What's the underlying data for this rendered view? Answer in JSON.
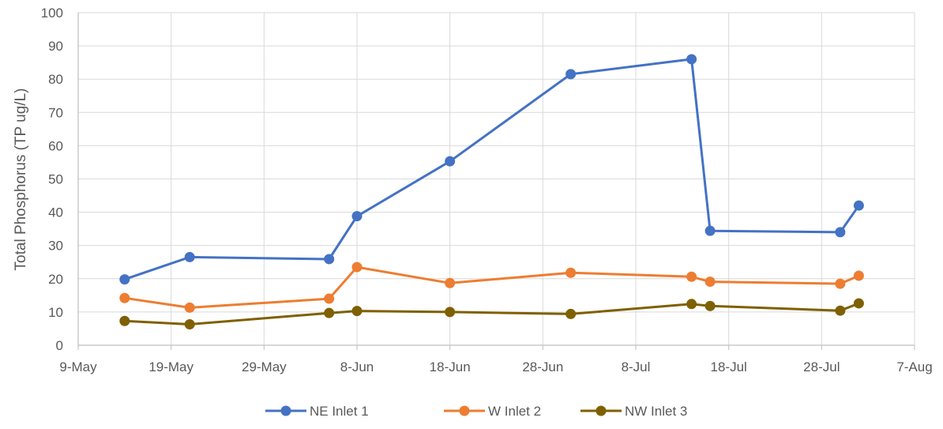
{
  "chart_data": {
    "type": "line",
    "title": "",
    "xlabel": "",
    "ylabel": "Total Phosphorus (TP ug/L)",
    "ylim": [
      0,
      100
    ],
    "yticks": [
      "0",
      "10",
      "20",
      "30",
      "40",
      "50",
      "60",
      "70",
      "80",
      "90",
      "100"
    ],
    "xlim": [
      "2019-05-09",
      "2019-08-07"
    ],
    "xticks": [
      {
        "date": "2019-05-09",
        "label": "9-May"
      },
      {
        "date": "2019-05-19",
        "label": "19-May"
      },
      {
        "date": "2019-05-29",
        "label": "29-May"
      },
      {
        "date": "2019-06-08",
        "label": "8-Jun"
      },
      {
        "date": "2019-06-18",
        "label": "18-Jun"
      },
      {
        "date": "2019-06-28",
        "label": "28-Jun"
      },
      {
        "date": "2019-07-08",
        "label": "8-Jul"
      },
      {
        "date": "2019-07-18",
        "label": "18-Jul"
      },
      {
        "date": "2019-07-28",
        "label": "28-Jul"
      },
      {
        "date": "2019-08-07",
        "label": "7-Aug"
      }
    ],
    "grid": true,
    "legend_position": "bottom",
    "series": [
      {
        "name": "NE Inlet 1",
        "color": "#4472C4",
        "points": [
          {
            "x": "2019-05-14",
            "y": 19.8
          },
          {
            "x": "2019-05-21",
            "y": 26.5
          },
          {
            "x": "2019-06-05",
            "y": 25.9
          },
          {
            "x": "2019-06-08",
            "y": 38.8
          },
          {
            "x": "2019-06-18",
            "y": 55.3
          },
          {
            "x": "2019-07-01",
            "y": 81.5
          },
          {
            "x": "2019-07-14",
            "y": 86.0
          },
          {
            "x": "2019-07-16",
            "y": 34.4
          },
          {
            "x": "2019-07-30",
            "y": 34.0
          },
          {
            "x": "2019-08-01",
            "y": 42.0
          }
        ]
      },
      {
        "name": "W Inlet 2",
        "color": "#ED7D31",
        "points": [
          {
            "x": "2019-05-14",
            "y": 14.2
          },
          {
            "x": "2019-05-21",
            "y": 11.3
          },
          {
            "x": "2019-06-05",
            "y": 14.0
          },
          {
            "x": "2019-06-08",
            "y": 23.5
          },
          {
            "x": "2019-06-18",
            "y": 18.7
          },
          {
            "x": "2019-07-01",
            "y": 21.8
          },
          {
            "x": "2019-07-14",
            "y": 20.6
          },
          {
            "x": "2019-07-16",
            "y": 19.1
          },
          {
            "x": "2019-07-30",
            "y": 18.5
          },
          {
            "x": "2019-08-01",
            "y": 20.9
          }
        ]
      },
      {
        "name": "NW Inlet 3",
        "color": "#7F6000",
        "points": [
          {
            "x": "2019-05-14",
            "y": 7.3
          },
          {
            "x": "2019-05-21",
            "y": 6.3
          },
          {
            "x": "2019-06-05",
            "y": 9.7
          },
          {
            "x": "2019-06-08",
            "y": 10.3
          },
          {
            "x": "2019-06-18",
            "y": 10.0
          },
          {
            "x": "2019-07-01",
            "y": 9.4
          },
          {
            "x": "2019-07-14",
            "y": 12.4
          },
          {
            "x": "2019-07-16",
            "y": 11.8
          },
          {
            "x": "2019-07-30",
            "y": 10.4
          },
          {
            "x": "2019-08-01",
            "y": 12.6
          }
        ]
      }
    ]
  },
  "colors": {
    "grid": "#D9D9D9",
    "axis": "#BFBFBF",
    "text": "#595959"
  }
}
